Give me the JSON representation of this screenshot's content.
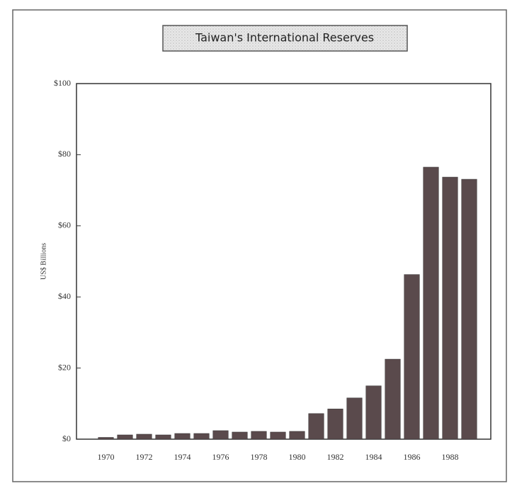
{
  "chart_data": {
    "type": "bar",
    "title": "Taiwan's International Reserves",
    "y_label": "US$ Billions",
    "categories": [
      "1970",
      null,
      "1972",
      null,
      "1974",
      null,
      "1976",
      null,
      "1978",
      null,
      "1980",
      null,
      "1982",
      null,
      "1984",
      null,
      "1986",
      null,
      "1988",
      null
    ],
    "values": [
      0.5,
      1.2,
      1.4,
      1.2,
      1.6,
      1.6,
      2.4,
      2.0,
      2.2,
      2.0,
      2.2,
      7.2,
      8.5,
      11.6,
      15.0,
      22.5,
      46.3,
      76.5,
      73.7,
      73.1
    ],
    "color": "#5a4a4c",
    "ylim": [
      0,
      100
    ],
    "yticks": [
      {
        "value": 0,
        "label": "$0"
      },
      {
        "value": 20,
        "label": "$20"
      },
      {
        "value": 40,
        "label": "$40"
      },
      {
        "value": 60,
        "label": "$60"
      },
      {
        "value": 80,
        "label": "$80"
      },
      {
        "value": 100,
        "label": "$100"
      }
    ],
    "grid": false
  }
}
